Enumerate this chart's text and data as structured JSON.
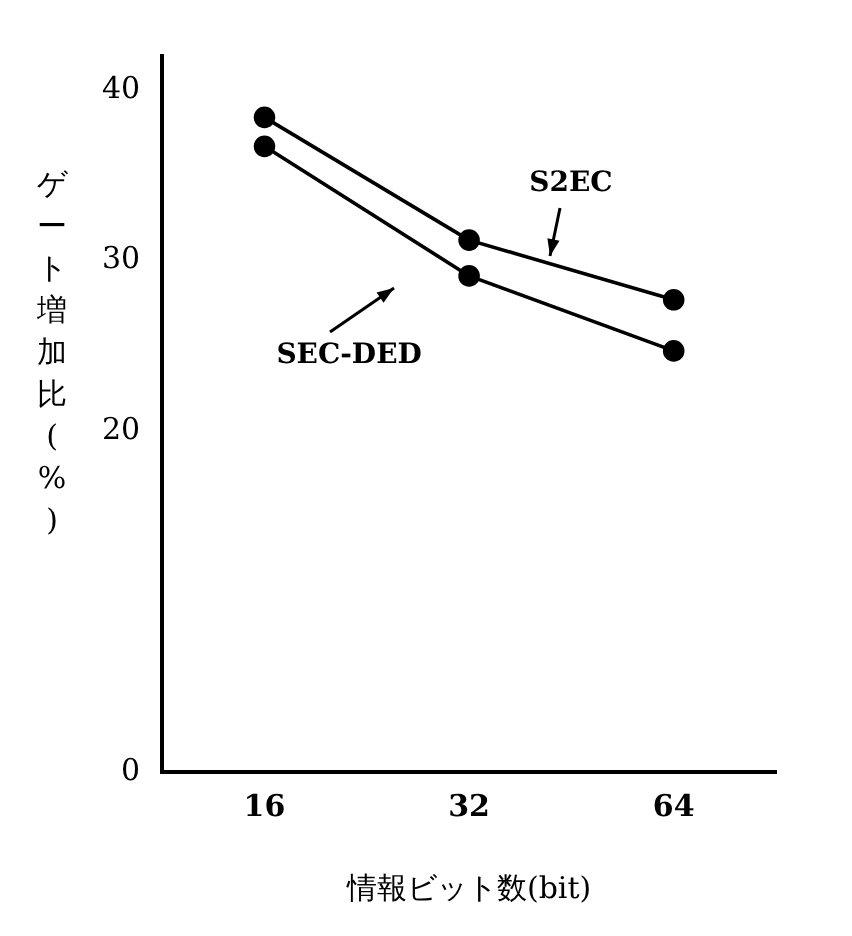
{
  "chart_data": {
    "type": "line",
    "xlabel": "情報ビット数(bit)",
    "ylabel": "ゲート増加比(%)",
    "categories": [
      "16",
      "32",
      "64"
    ],
    "series": [
      {
        "name": "S2EC",
        "color": "#000000",
        "values": [
          38.4,
          31.2,
          27.7
        ]
      },
      {
        "name": "SEC-DED",
        "color": "#000000",
        "values": [
          36.7,
          29.1,
          24.7
        ]
      }
    ],
    "ylim": [
      0,
      42
    ],
    "yticks": [
      0,
      20,
      30,
      40
    ],
    "grid": false,
    "marker": "circle",
    "line_style": "solid"
  }
}
